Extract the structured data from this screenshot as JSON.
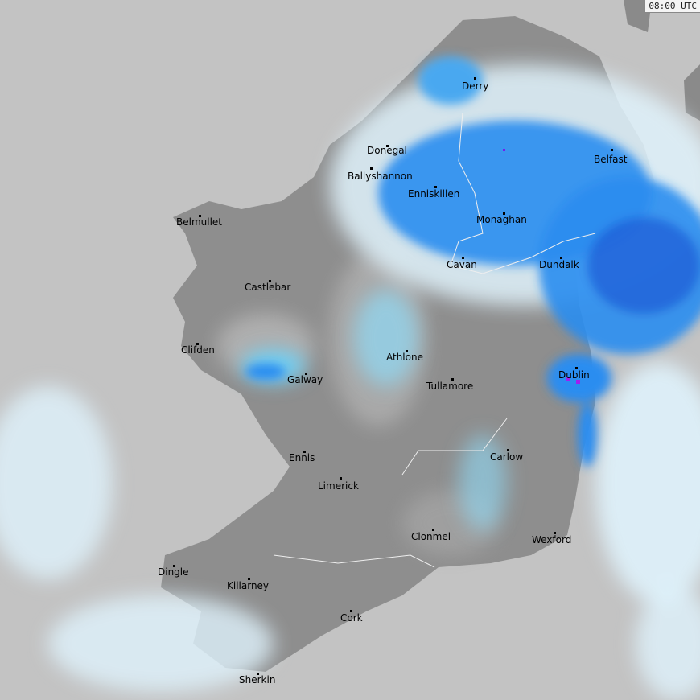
{
  "timestamp": "08:00 UTC",
  "colors": {
    "sea": "#c3c3c3",
    "land": "#8e8e8e",
    "land_light": "#a8a8a8",
    "rain_light": "#dff2fc",
    "rain_mid": "#6fd0f5",
    "rain_heavy": "#2a8df0",
    "rain_very_heavy": "#1e60d8",
    "rain_extreme": "#a020f0"
  },
  "cities": [
    {
      "name": "Derry"
    },
    {
      "name": "Donegal"
    },
    {
      "name": "Ballyshannon"
    },
    {
      "name": "Enniskillen"
    },
    {
      "name": "Belfast"
    },
    {
      "name": "Monaghan"
    },
    {
      "name": "Belmullet"
    },
    {
      "name": "Cavan"
    },
    {
      "name": "Dundalk"
    },
    {
      "name": "Castlebar"
    },
    {
      "name": "Clifden"
    },
    {
      "name": "Athlone"
    },
    {
      "name": "Galway"
    },
    {
      "name": "Tullamore"
    },
    {
      "name": "Dublin"
    },
    {
      "name": "Ennis"
    },
    {
      "name": "Carlow"
    },
    {
      "name": "Limerick"
    },
    {
      "name": "Clonmel"
    },
    {
      "name": "Wexford"
    },
    {
      "name": "Dingle"
    },
    {
      "name": "Killarney"
    },
    {
      "name": "Cork"
    },
    {
      "name": "Sherkin"
    }
  ]
}
